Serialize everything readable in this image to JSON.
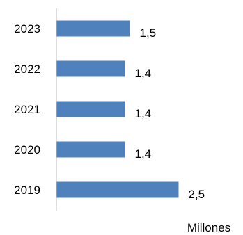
{
  "chart_data": {
    "type": "bar",
    "orientation": "horizontal",
    "categories": [
      "2023",
      "2022",
      "2021",
      "2020",
      "2019"
    ],
    "values": [
      1.5,
      1.4,
      1.4,
      1.4,
      2.5
    ],
    "value_labels": [
      "1,5",
      "1,4",
      "1,4",
      "1,4",
      "2,5"
    ],
    "title": "",
    "xlabel": "Millones",
    "ylabel": "",
    "xlim": [
      0,
      2.5
    ],
    "grid": false,
    "legend": "none",
    "bar_color": "#4f81bd",
    "axis_color": "#bfbfbf"
  }
}
